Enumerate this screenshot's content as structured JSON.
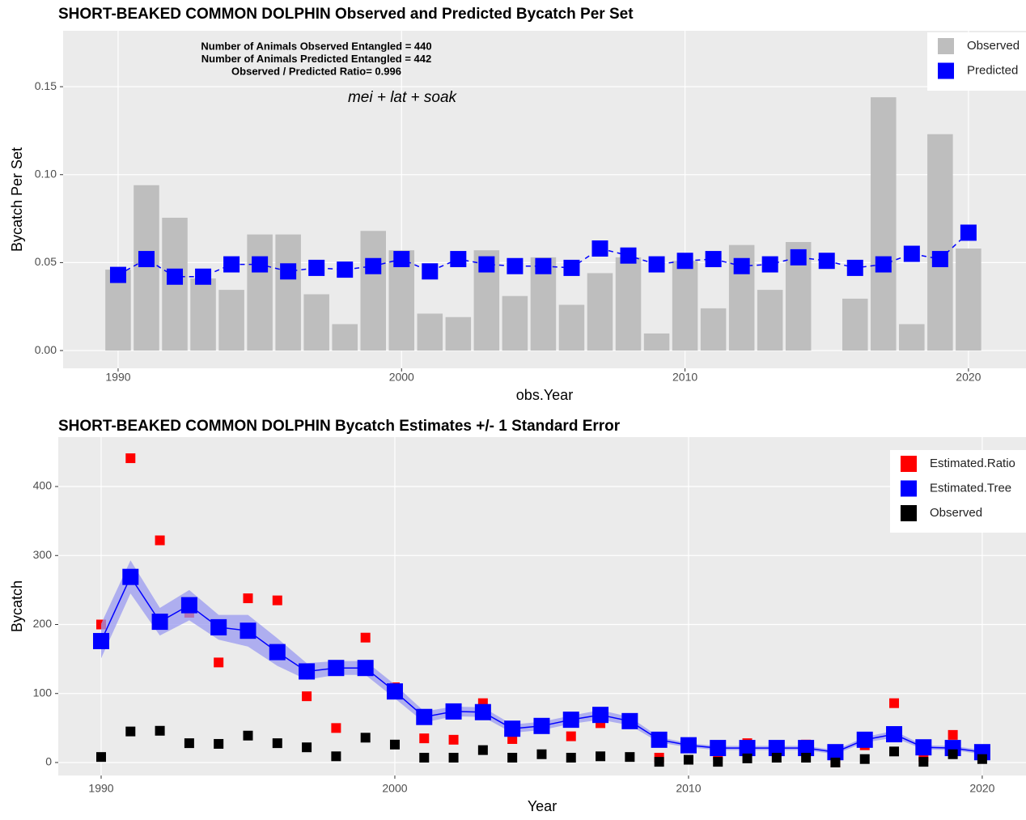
{
  "chart_data": [
    {
      "type": "bar",
      "title": "SHORT-BEAKED COMMON DOLPHIN Observed and Predicted Bycatch Per Set",
      "annotations": [
        "Number of Animals Observed Entangled = 440",
        "Number of Animals Predicted Entangled = 442",
        "Observed / Predicted Ratio= 0.996"
      ],
      "formula": "mei + lat + soak",
      "x_label": "obs.Year",
      "y_label": "Bycatch Per Set",
      "x": [
        1990,
        1991,
        1992,
        1993,
        1994,
        1995,
        1996,
        1997,
        1998,
        1999,
        2000,
        2001,
        2002,
        2003,
        2004,
        2005,
        2006,
        2007,
        2008,
        2009,
        2010,
        2011,
        2012,
        2013,
        2014,
        2015,
        2016,
        2017,
        2018,
        2019,
        2020
      ],
      "series": [
        {
          "name": "Observed",
          "type": "bar",
          "color": "#bebebe",
          "values": [
            0.046,
            0.094,
            0.0755,
            0.041,
            0.0345,
            0.066,
            0.066,
            0.032,
            0.015,
            0.068,
            0.057,
            0.021,
            0.019,
            0.057,
            0.031,
            0.053,
            0.026,
            0.044,
            0.053,
            0.0097,
            0.051,
            0.024,
            0.06,
            0.0345,
            0.0617,
            0,
            0.0295,
            0.144,
            0.015,
            0.123,
            0.058
          ]
        },
        {
          "name": "Predicted",
          "type": "line",
          "dash": true,
          "color": "#0000ff",
          "values": [
            0.043,
            0.052,
            0.042,
            0.042,
            0.049,
            0.049,
            0.045,
            0.047,
            0.046,
            0.048,
            0.052,
            0.045,
            0.052,
            0.049,
            0.048,
            0.048,
            0.047,
            0.058,
            0.054,
            0.049,
            0.051,
            0.052,
            0.048,
            0.049,
            0.053,
            0.051,
            0.047,
            0.049,
            0.055,
            0.052,
            0.067
          ]
        }
      ],
      "xlim": [
        1988.06,
        2022.03
      ],
      "xticks": [
        1990,
        2000,
        2010,
        2020
      ],
      "ylim": [
        -0.0101,
        0.1818
      ],
      "yticks": [
        {
          "value": 0,
          "label": "0.00"
        },
        {
          "value": 0.05,
          "label": "0.05"
        },
        {
          "value": 0.1,
          "label": "0.10"
        },
        {
          "value": 0.15,
          "label": "0.15"
        }
      ],
      "grid": true,
      "legend": "top-right"
    },
    {
      "type": "scatter",
      "title": "SHORT-BEAKED COMMON DOLPHIN Bycatch Estimates +/- 1 Standard Error",
      "x_label": "Year",
      "y_label": "Bycatch",
      "x": [
        1990,
        1991,
        1992,
        1993,
        1994,
        1995,
        1996,
        1997,
        1998,
        1999,
        2000,
        2001,
        2002,
        2003,
        2004,
        2005,
        2006,
        2007,
        2008,
        2009,
        2010,
        2011,
        2012,
        2013,
        2014,
        2015,
        2016,
        2017,
        2018,
        2019,
        2020
      ],
      "series": [
        {
          "name": "Estimated.Ratio",
          "type": "scatter",
          "color": "#ff0000",
          "values": [
            200,
            441,
            322,
            217,
            145,
            238,
            235,
            96,
            50,
            181,
            109,
            35,
            33,
            86,
            34,
            57,
            38,
            57,
            57,
            7,
            26,
            11,
            28,
            16,
            26,
            0,
            25,
            86,
            8,
            40,
            14
          ]
        },
        {
          "name": "Estimated.Tree",
          "type": "line",
          "dash": false,
          "color": "#0000ff",
          "band_color": "#9a9af0",
          "values": [
            176,
            269,
            204,
            228,
            196,
            191,
            160,
            132,
            137,
            137,
            103,
            66,
            74,
            73,
            49,
            53,
            62,
            69,
            60,
            33,
            25,
            21,
            21,
            21,
            21,
            15,
            33,
            41,
            22,
            21,
            15
          ],
          "errors": [
            25,
            24,
            20,
            22,
            18,
            23,
            20,
            12,
            10,
            10,
            10,
            8,
            7,
            7,
            6,
            6,
            6,
            7,
            6,
            4,
            3,
            3,
            3,
            3,
            3,
            3,
            4,
            5,
            3,
            3,
            3
          ]
        },
        {
          "name": "Observed",
          "type": "scatter",
          "color": "#000000",
          "values": [
            8,
            45,
            46,
            28,
            27,
            39,
            28,
            22,
            9,
            36,
            26,
            7,
            7,
            18,
            7,
            12,
            7,
            9,
            8,
            1,
            4,
            1,
            6,
            7,
            7,
            0,
            5,
            16,
            1,
            12,
            5
          ]
        }
      ],
      "xlim": [
        1988.54,
        2021.49
      ],
      "xticks": [
        1990,
        2000,
        2010,
        2020
      ],
      "ylim": [
        -18.8,
        471.6
      ],
      "yticks": [
        0,
        100,
        200,
        300,
        400
      ],
      "grid": true,
      "legend": "top-right"
    }
  ]
}
